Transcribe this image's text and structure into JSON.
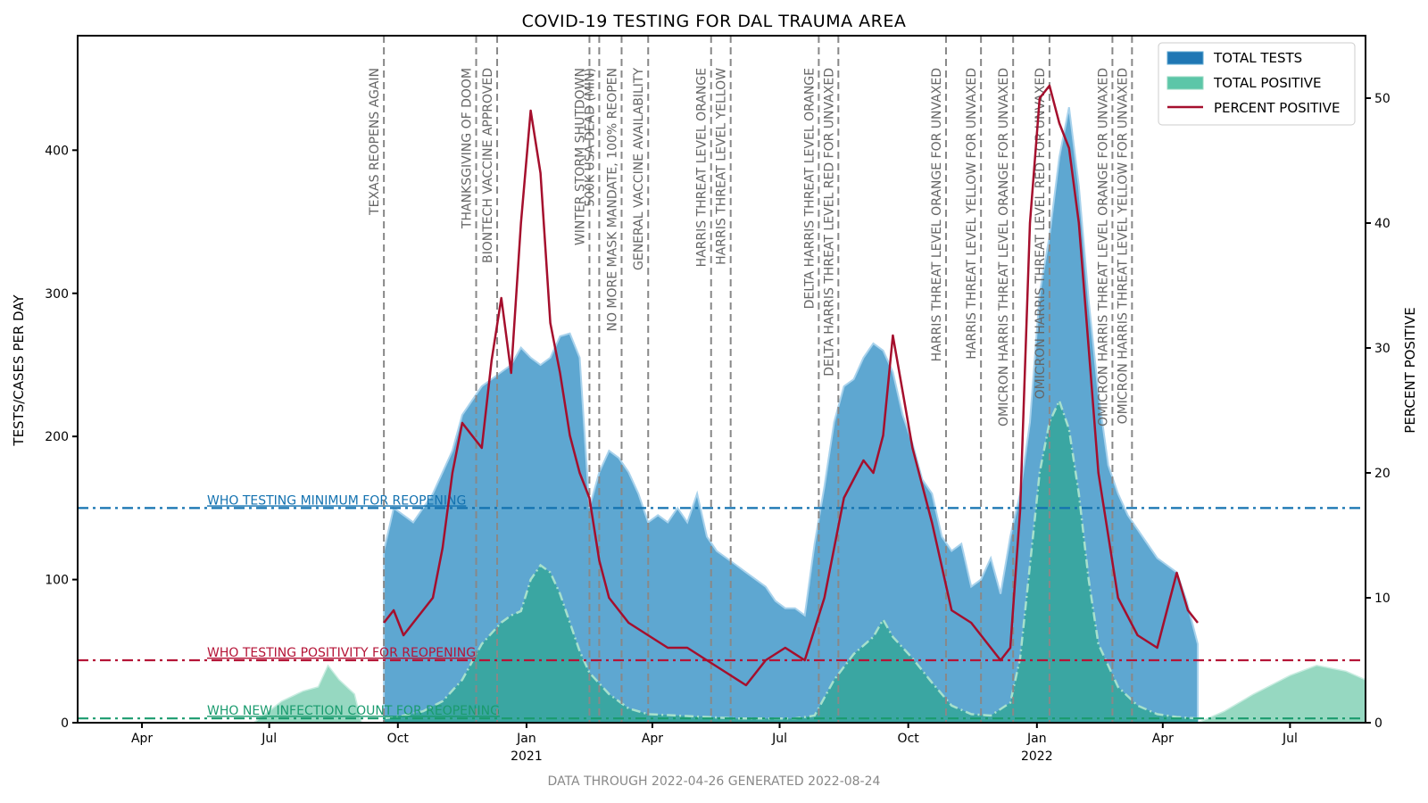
{
  "chart_data": {
    "type": "area",
    "title": "COVID-19 TESTING FOR DAL TRAUMA AREA",
    "ylabel": "TESTS/CASES PER DAY",
    "y2label": "PERCENT POSITIVE",
    "footer": "DATA THROUGH 2022-04-26 GENERATED 2022-08-24",
    "ylim": [
      0,
      480
    ],
    "y2lim": [
      0,
      55
    ],
    "yticks": [
      "0",
      "100",
      "200",
      "300",
      "400"
    ],
    "y2ticks": [
      "0",
      "10",
      "20",
      "30",
      "40",
      "50"
    ],
    "xlim": [
      "2020-02-15",
      "2022-08-24"
    ],
    "xticks": [
      {
        "date": "2020-04-01",
        "label": "Apr",
        "year": ""
      },
      {
        "date": "2020-07-01",
        "label": "Jul",
        "year": ""
      },
      {
        "date": "2020-10-01",
        "label": "Oct",
        "year": ""
      },
      {
        "date": "2021-01-01",
        "label": "Jan",
        "year": "2021"
      },
      {
        "date": "2021-04-01",
        "label": "Apr",
        "year": ""
      },
      {
        "date": "2021-07-01",
        "label": "Jul",
        "year": ""
      },
      {
        "date": "2021-10-01",
        "label": "Oct",
        "year": ""
      },
      {
        "date": "2022-01-01",
        "label": "Jan",
        "year": "2022"
      },
      {
        "date": "2022-04-01",
        "label": "Apr",
        "year": ""
      },
      {
        "date": "2022-07-01",
        "label": "Jul",
        "year": ""
      }
    ],
    "legend": {
      "position": "top-right",
      "entries": [
        "TOTAL TESTS",
        "TOTAL POSITIVE",
        "PERCENT POSITIVE"
      ]
    },
    "colors": {
      "tests_fill": "#5ea7d1",
      "tests_line": "#a8d2ec",
      "positive_fill": "#3aa6a2",
      "positive_line": "#a6e0cc",
      "positive_light": "#96d8c1",
      "percent": "#a50f2d",
      "who_tests": "#1372b0",
      "who_positivity": "#b51437",
      "who_cases": "#1a9b6e",
      "event_line": "#888888"
    },
    "reference_lines": [
      {
        "label": "WHO TESTING MINIMUM FOR REOPENING",
        "axis": "left",
        "value": 150,
        "color": "#1372b0"
      },
      {
        "label": "WHO TESTING POSITIVITY FOR REOPENING",
        "axis": "right",
        "value": 5,
        "color": "#b51437"
      },
      {
        "label": "WHO NEW INFECTION COUNT FOR REOPENING",
        "axis": "left",
        "value": 3,
        "color": "#1a9b6e"
      }
    ],
    "events": [
      {
        "date": "2020-09-21",
        "label": "TEXAS REOPENS AGAIN"
      },
      {
        "date": "2020-11-26",
        "label": "THANKSGIVING OF DOOM"
      },
      {
        "date": "2020-12-11",
        "label": "BIONTECH VACCINE APPROVED"
      },
      {
        "date": "2021-02-15",
        "label": "WINTER STORM SHUTDOWN"
      },
      {
        "date": "2021-02-22",
        "label": "500K USA DEAD (MIN)"
      },
      {
        "date": "2021-03-10",
        "label": "NO MORE MASK MANDATE, 100% REOPEN"
      },
      {
        "date": "2021-03-29",
        "label": "GENERAL VACCINE AVAILABILITY"
      },
      {
        "date": "2021-05-13",
        "label": "HARRIS THREAT LEVEL ORANGE"
      },
      {
        "date": "2021-05-27",
        "label": "HARRIS THREAT LEVEL YELLOW"
      },
      {
        "date": "2021-07-29",
        "label": "DELTA HARRIS THREAT LEVEL ORANGE"
      },
      {
        "date": "2021-08-12",
        "label": "DELTA HARRIS THREAT LEVEL RED FOR UNVAXED"
      },
      {
        "date": "2021-10-28",
        "label": "HARRIS THREAT LEVEL ORANGE FOR UNVAXED"
      },
      {
        "date": "2021-11-22",
        "label": "HARRIS THREAT LEVEL YELLOW FOR UNVAXED"
      },
      {
        "date": "2021-12-15",
        "label": "OMICRON HARRIS THREAT LEVEL ORANGE FOR UNVAXED"
      },
      {
        "date": "2022-01-10",
        "label": "OMICRON HARRIS THREAT LEVEL RED FOR UNVAXED"
      },
      {
        "date": "2022-02-24",
        "label": "OMICRON HARRIS THREAT LEVEL ORANGE FOR UNVAXED"
      },
      {
        "date": "2022-03-10",
        "label": "OMICRON HARRIS THREAT LEVEL YELLOW FOR UNVAXED"
      }
    ],
    "series": [
      {
        "name": "TOTAL TESTS",
        "axis": "left",
        "x": [
          "2020-09-21",
          "2020-09-28",
          "2020-10-05",
          "2020-10-12",
          "2020-10-19",
          "2020-10-26",
          "2020-11-02",
          "2020-11-09",
          "2020-11-16",
          "2020-11-23",
          "2020-11-30",
          "2020-12-07",
          "2020-12-14",
          "2020-12-21",
          "2020-12-28",
          "2021-01-04",
          "2021-01-11",
          "2021-01-18",
          "2021-01-25",
          "2021-02-01",
          "2021-02-08",
          "2021-02-15",
          "2021-02-22",
          "2021-03-01",
          "2021-03-08",
          "2021-03-15",
          "2021-03-22",
          "2021-03-29",
          "2021-04-05",
          "2021-04-12",
          "2021-04-19",
          "2021-04-26",
          "2021-05-03",
          "2021-05-10",
          "2021-05-17",
          "2021-05-24",
          "2021-05-31",
          "2021-06-07",
          "2021-06-14",
          "2021-06-21",
          "2021-06-28",
          "2021-07-05",
          "2021-07-12",
          "2021-07-19",
          "2021-07-26",
          "2021-08-02",
          "2021-08-09",
          "2021-08-16",
          "2021-08-23",
          "2021-08-30",
          "2021-09-06",
          "2021-09-13",
          "2021-09-20",
          "2021-09-27",
          "2021-10-04",
          "2021-10-11",
          "2021-10-18",
          "2021-10-25",
          "2021-11-01",
          "2021-11-08",
          "2021-11-15",
          "2021-11-22",
          "2021-11-29",
          "2021-12-06",
          "2021-12-13",
          "2021-12-20",
          "2021-12-27",
          "2022-01-03",
          "2022-01-10",
          "2022-01-17",
          "2022-01-24",
          "2022-01-31",
          "2022-02-07",
          "2022-02-14",
          "2022-02-21",
          "2022-02-28",
          "2022-03-07",
          "2022-03-14",
          "2022-03-21",
          "2022-03-28",
          "2022-04-04",
          "2022-04-11",
          "2022-04-18",
          "2022-04-26"
        ],
        "values": [
          120,
          150,
          145,
          140,
          150,
          160,
          175,
          190,
          215,
          225,
          235,
          240,
          245,
          250,
          262,
          255,
          250,
          255,
          270,
          272,
          255,
          150,
          175,
          190,
          185,
          175,
          160,
          140,
          145,
          140,
          150,
          140,
          160,
          130,
          120,
          115,
          110,
          105,
          100,
          95,
          85,
          80,
          80,
          75,
          125,
          165,
          210,
          235,
          240,
          255,
          265,
          260,
          245,
          215,
          195,
          170,
          160,
          130,
          120,
          125,
          95,
          100,
          115,
          90,
          130,
          160,
          210,
          300,
          340,
          395,
          430,
          375,
          295,
          230,
          180,
          160,
          145,
          135,
          125,
          115,
          110,
          105,
          85,
          55
        ]
      },
      {
        "name": "TOTAL POSITIVE",
        "axis": "left",
        "x": [
          "2020-09-21",
          "2020-10-05",
          "2020-10-19",
          "2020-11-02",
          "2020-11-16",
          "2020-11-30",
          "2020-12-14",
          "2020-12-21",
          "2020-12-28",
          "2021-01-04",
          "2021-01-11",
          "2021-01-18",
          "2021-01-25",
          "2021-02-01",
          "2021-02-08",
          "2021-02-15",
          "2021-03-01",
          "2021-03-15",
          "2021-03-29",
          "2021-04-19",
          "2021-05-10",
          "2021-05-31",
          "2021-06-21",
          "2021-07-12",
          "2021-07-26",
          "2021-08-09",
          "2021-08-23",
          "2021-09-06",
          "2021-09-13",
          "2021-09-20",
          "2021-10-04",
          "2021-10-18",
          "2021-11-01",
          "2021-11-15",
          "2021-11-29",
          "2021-12-13",
          "2021-12-20",
          "2021-12-27",
          "2022-01-03",
          "2022-01-10",
          "2022-01-17",
          "2022-01-24",
          "2022-01-31",
          "2022-02-07",
          "2022-02-14",
          "2022-02-28",
          "2022-03-14",
          "2022-03-28",
          "2022-04-11",
          "2022-04-26"
        ],
        "values": [
          3,
          5,
          8,
          15,
          30,
          55,
          70,
          75,
          78,
          100,
          110,
          105,
          90,
          70,
          50,
          35,
          20,
          10,
          6,
          5,
          4,
          3,
          3,
          3,
          5,
          30,
          48,
          60,
          72,
          60,
          45,
          28,
          12,
          6,
          5,
          14,
          45,
          110,
          175,
          210,
          225,
          205,
          160,
          100,
          55,
          25,
          12,
          6,
          4,
          3
        ]
      },
      {
        "name": "PERCENT POSITIVE",
        "axis": "right",
        "x": [
          "2020-09-21",
          "2020-09-28",
          "2020-10-05",
          "2020-10-12",
          "2020-10-19",
          "2020-10-26",
          "2020-11-02",
          "2020-11-09",
          "2020-11-16",
          "2020-11-23",
          "2020-11-30",
          "2020-12-07",
          "2020-12-14",
          "2020-12-21",
          "2020-12-28",
          "2021-01-04",
          "2021-01-11",
          "2021-01-18",
          "2021-01-25",
          "2021-02-01",
          "2021-02-08",
          "2021-02-15",
          "2021-02-22",
          "2021-03-01",
          "2021-03-15",
          "2021-03-29",
          "2021-04-12",
          "2021-04-26",
          "2021-05-10",
          "2021-05-24",
          "2021-06-07",
          "2021-06-21",
          "2021-07-05",
          "2021-07-19",
          "2021-08-02",
          "2021-08-16",
          "2021-08-30",
          "2021-09-06",
          "2021-09-13",
          "2021-09-20",
          "2021-10-04",
          "2021-10-18",
          "2021-11-01",
          "2021-11-15",
          "2021-11-29",
          "2021-12-06",
          "2021-12-13",
          "2021-12-20",
          "2021-12-27",
          "2022-01-03",
          "2022-01-10",
          "2022-01-17",
          "2022-01-24",
          "2022-01-31",
          "2022-02-07",
          "2022-02-14",
          "2022-02-28",
          "2022-03-14",
          "2022-03-28",
          "2022-04-11",
          "2022-04-19",
          "2022-04-26"
        ],
        "values": [
          8,
          9,
          7,
          8,
          9,
          10,
          14,
          20,
          24,
          23,
          22,
          29,
          34,
          28,
          40,
          49,
          44,
          32,
          28,
          23,
          20,
          18,
          13,
          10,
          8,
          7,
          6,
          6,
          5,
          4,
          3,
          5,
          6,
          5,
          10,
          18,
          21,
          20,
          23,
          31,
          22,
          16,
          9,
          8,
          6,
          5,
          6,
          17,
          40,
          50,
          51,
          48,
          46,
          40,
          30,
          20,
          10,
          7,
          6,
          12,
          9,
          8
        ]
      }
    ]
  }
}
